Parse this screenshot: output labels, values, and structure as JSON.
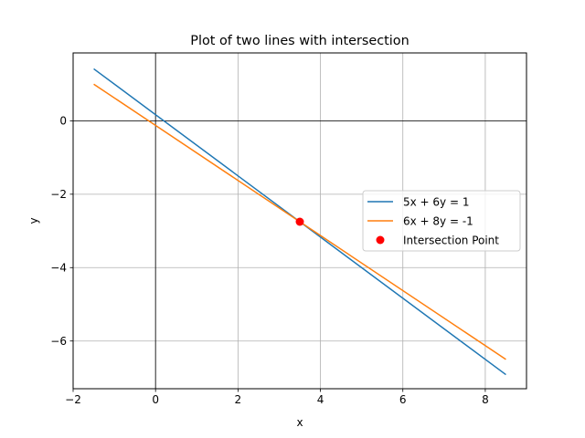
{
  "chart_data": {
    "type": "line",
    "title": "Plot of two lines with intersection",
    "xlabel": "x",
    "ylabel": "y",
    "xlim": [
      -2,
      9
    ],
    "ylim": [
      -7.3,
      1.85
    ],
    "xticks": [
      -2,
      0,
      2,
      4,
      6,
      8
    ],
    "yticks": [
      -6,
      -4,
      -2,
      0
    ],
    "xtick_labels": [
      "−2",
      "0",
      "2",
      "4",
      "6",
      "8"
    ],
    "ytick_labels": [
      "−6",
      "−4",
      "−2",
      "0"
    ],
    "grid": true,
    "legend_position": "center-right",
    "series": [
      {
        "name": "5x + 6y = 1",
        "color": "#1f77b4",
        "x": [
          -1.5,
          8.5
        ],
        "y": [
          1.4167,
          -6.9167
        ]
      },
      {
        "name": "6x + 8y = -1",
        "color": "#ff7f0e",
        "x": [
          -1.5,
          8.5
        ],
        "y": [
          1.0,
          -6.5
        ]
      }
    ],
    "points": [
      {
        "name": "Intersection Point",
        "color": "#ff0000",
        "x": 3.5,
        "y": -2.75
      }
    ]
  }
}
